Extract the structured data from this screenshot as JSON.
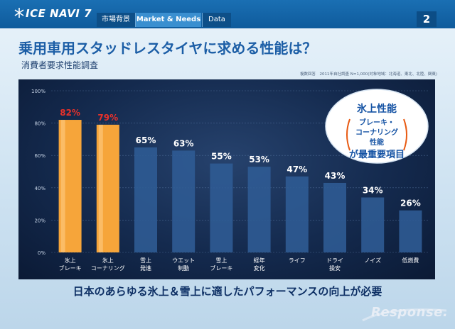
{
  "header": {
    "logo_text": "ICE NAVI 7",
    "tabs": [
      {
        "label": "市場背景"
      },
      {
        "label": "Market & Needs"
      },
      {
        "label": "Data"
      }
    ],
    "page_number": "2"
  },
  "title": "乗用車用スタッドレスタイヤに求める性能は？",
  "subtitle": "消費者要求性能調査",
  "source_note": "複数回答　2011年自社調査 N=1,000(対象地域：北海道、東北、北陸、関東)",
  "callout": {
    "line1": "氷上性能",
    "line2": "ブレーキ・",
    "line3": "コーナリング",
    "line4": "性能",
    "line5": "が最重要項目"
  },
  "bottom_message": "日本のあらゆる氷上＆雪上に適したパフォーマンスの向上が必要",
  "watermark": "Response.",
  "colors": {
    "highlight_bar": "#f6a53a",
    "normal_bar": "#2f5b94",
    "highlight_label": "#e8312a",
    "normal_label": "#ffffff",
    "callout_text": "#1553a4",
    "callout_accent": "#e85a12"
  },
  "chart_data": {
    "type": "bar",
    "categories": [
      [
        "氷上",
        "ブレーキ"
      ],
      [
        "氷上",
        "コーナリング"
      ],
      [
        "雪上",
        "発進"
      ],
      [
        "ウエット",
        "制動"
      ],
      [
        "雪上",
        "ブレーキ"
      ],
      [
        "経年",
        "変化"
      ],
      [
        "ライフ"
      ],
      [
        "ドライ",
        "操安"
      ],
      [
        "ノイズ"
      ],
      [
        "低燃費"
      ]
    ],
    "values": [
      82,
      79,
      65,
      63,
      55,
      53,
      47,
      43,
      34,
      26
    ],
    "value_labels": [
      "82%",
      "79%",
      "65%",
      "63%",
      "55%",
      "53%",
      "47%",
      "43%",
      "34%",
      "26%"
    ],
    "highlighted": [
      true,
      true,
      false,
      false,
      false,
      false,
      false,
      false,
      false,
      false
    ],
    "yticks": [
      "0%",
      "20%",
      "40%",
      "60%",
      "80%",
      "100%"
    ],
    "ylim": [
      0,
      100
    ],
    "grid": true
  }
}
